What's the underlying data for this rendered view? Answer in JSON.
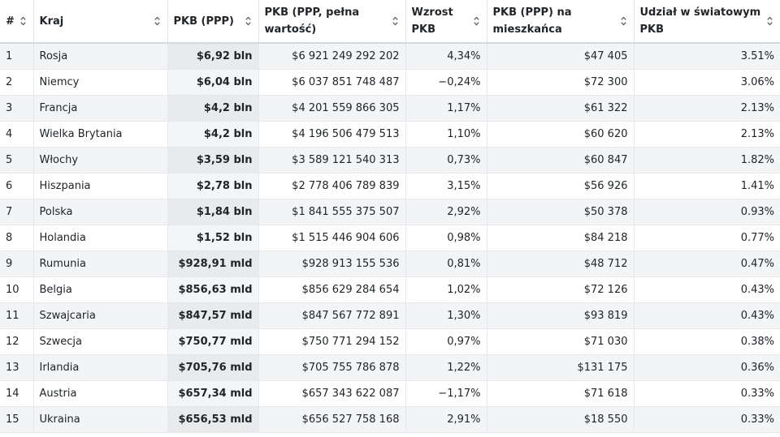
{
  "table": {
    "columns": [
      {
        "label": "#"
      },
      {
        "label": "Kraj"
      },
      {
        "label": "PKB (PPP)"
      },
      {
        "label": "PKB (PPP, pełna wartość)"
      },
      {
        "label": "Wzrost PKB"
      },
      {
        "label": "PKB (PPP) na mieszkańca"
      },
      {
        "label": "Udział w światowym PKB"
      }
    ],
    "rows": [
      {
        "rank": "1",
        "country": "Rosja",
        "gdp": "$6,92 bln",
        "gdp_full": "$6 921 249 292 202",
        "growth": "4,34%",
        "per_capita": "$47 405",
        "share": "3.51%"
      },
      {
        "rank": "2",
        "country": "Niemcy",
        "gdp": "$6,04 bln",
        "gdp_full": "$6 037 851 748 487",
        "growth": "−0,24%",
        "per_capita": "$72 300",
        "share": "3.06%"
      },
      {
        "rank": "3",
        "country": "Francja",
        "gdp": "$4,2 bln",
        "gdp_full": "$4 201 559 866 305",
        "growth": "1,17%",
        "per_capita": "$61 322",
        "share": "2.13%"
      },
      {
        "rank": "4",
        "country": "Wielka Brytania",
        "gdp": "$4,2 bln",
        "gdp_full": "$4 196 506 479 513",
        "growth": "1,10%",
        "per_capita": "$60 620",
        "share": "2.13%"
      },
      {
        "rank": "5",
        "country": "Włochy",
        "gdp": "$3,59 bln",
        "gdp_full": "$3 589 121 540 313",
        "growth": "0,73%",
        "per_capita": "$60 847",
        "share": "1.82%"
      },
      {
        "rank": "6",
        "country": "Hiszpania",
        "gdp": "$2,78 bln",
        "gdp_full": "$2 778 406 789 839",
        "growth": "3,15%",
        "per_capita": "$56 926",
        "share": "1.41%"
      },
      {
        "rank": "7",
        "country": "Polska",
        "gdp": "$1,84 bln",
        "gdp_full": "$1 841 555 375 507",
        "growth": "2,92%",
        "per_capita": "$50 378",
        "share": "0.93%"
      },
      {
        "rank": "8",
        "country": "Holandia",
        "gdp": "$1,52 bln",
        "gdp_full": "$1 515 446 904 606",
        "growth": "0,98%",
        "per_capita": "$84 218",
        "share": "0.77%"
      },
      {
        "rank": "9",
        "country": "Rumunia",
        "gdp": "$928,91 mld",
        "gdp_full": "$928 913 155 536",
        "growth": "0,81%",
        "per_capita": "$48 712",
        "share": "0.47%"
      },
      {
        "rank": "10",
        "country": "Belgia",
        "gdp": "$856,63 mld",
        "gdp_full": "$856 629 284 654",
        "growth": "1,02%",
        "per_capita": "$72 126",
        "share": "0.43%"
      },
      {
        "rank": "11",
        "country": "Szwajcaria",
        "gdp": "$847,57 mld",
        "gdp_full": "$847 567 772 891",
        "growth": "1,30%",
        "per_capita": "$93 819",
        "share": "0.43%"
      },
      {
        "rank": "12",
        "country": "Szwecja",
        "gdp": "$750,77 mld",
        "gdp_full": "$750 771 294 152",
        "growth": "0,97%",
        "per_capita": "$71 030",
        "share": "0.38%"
      },
      {
        "rank": "13",
        "country": "Irlandia",
        "gdp": "$705,76 mld",
        "gdp_full": "$705 755 786 878",
        "growth": "1,22%",
        "per_capita": "$131 175",
        "share": "0.36%"
      },
      {
        "rank": "14",
        "country": "Austria",
        "gdp": "$657,34 mld",
        "gdp_full": "$657 343 622 087",
        "growth": "−1,17%",
        "per_capita": "$71 618",
        "share": "0.33%"
      },
      {
        "rank": "15",
        "country": "Ukraina",
        "gdp": "$656,53 mld",
        "gdp_full": "$656 527 758 168",
        "growth": "2,91%",
        "per_capita": "$18 550",
        "share": "0.33%"
      }
    ]
  }
}
